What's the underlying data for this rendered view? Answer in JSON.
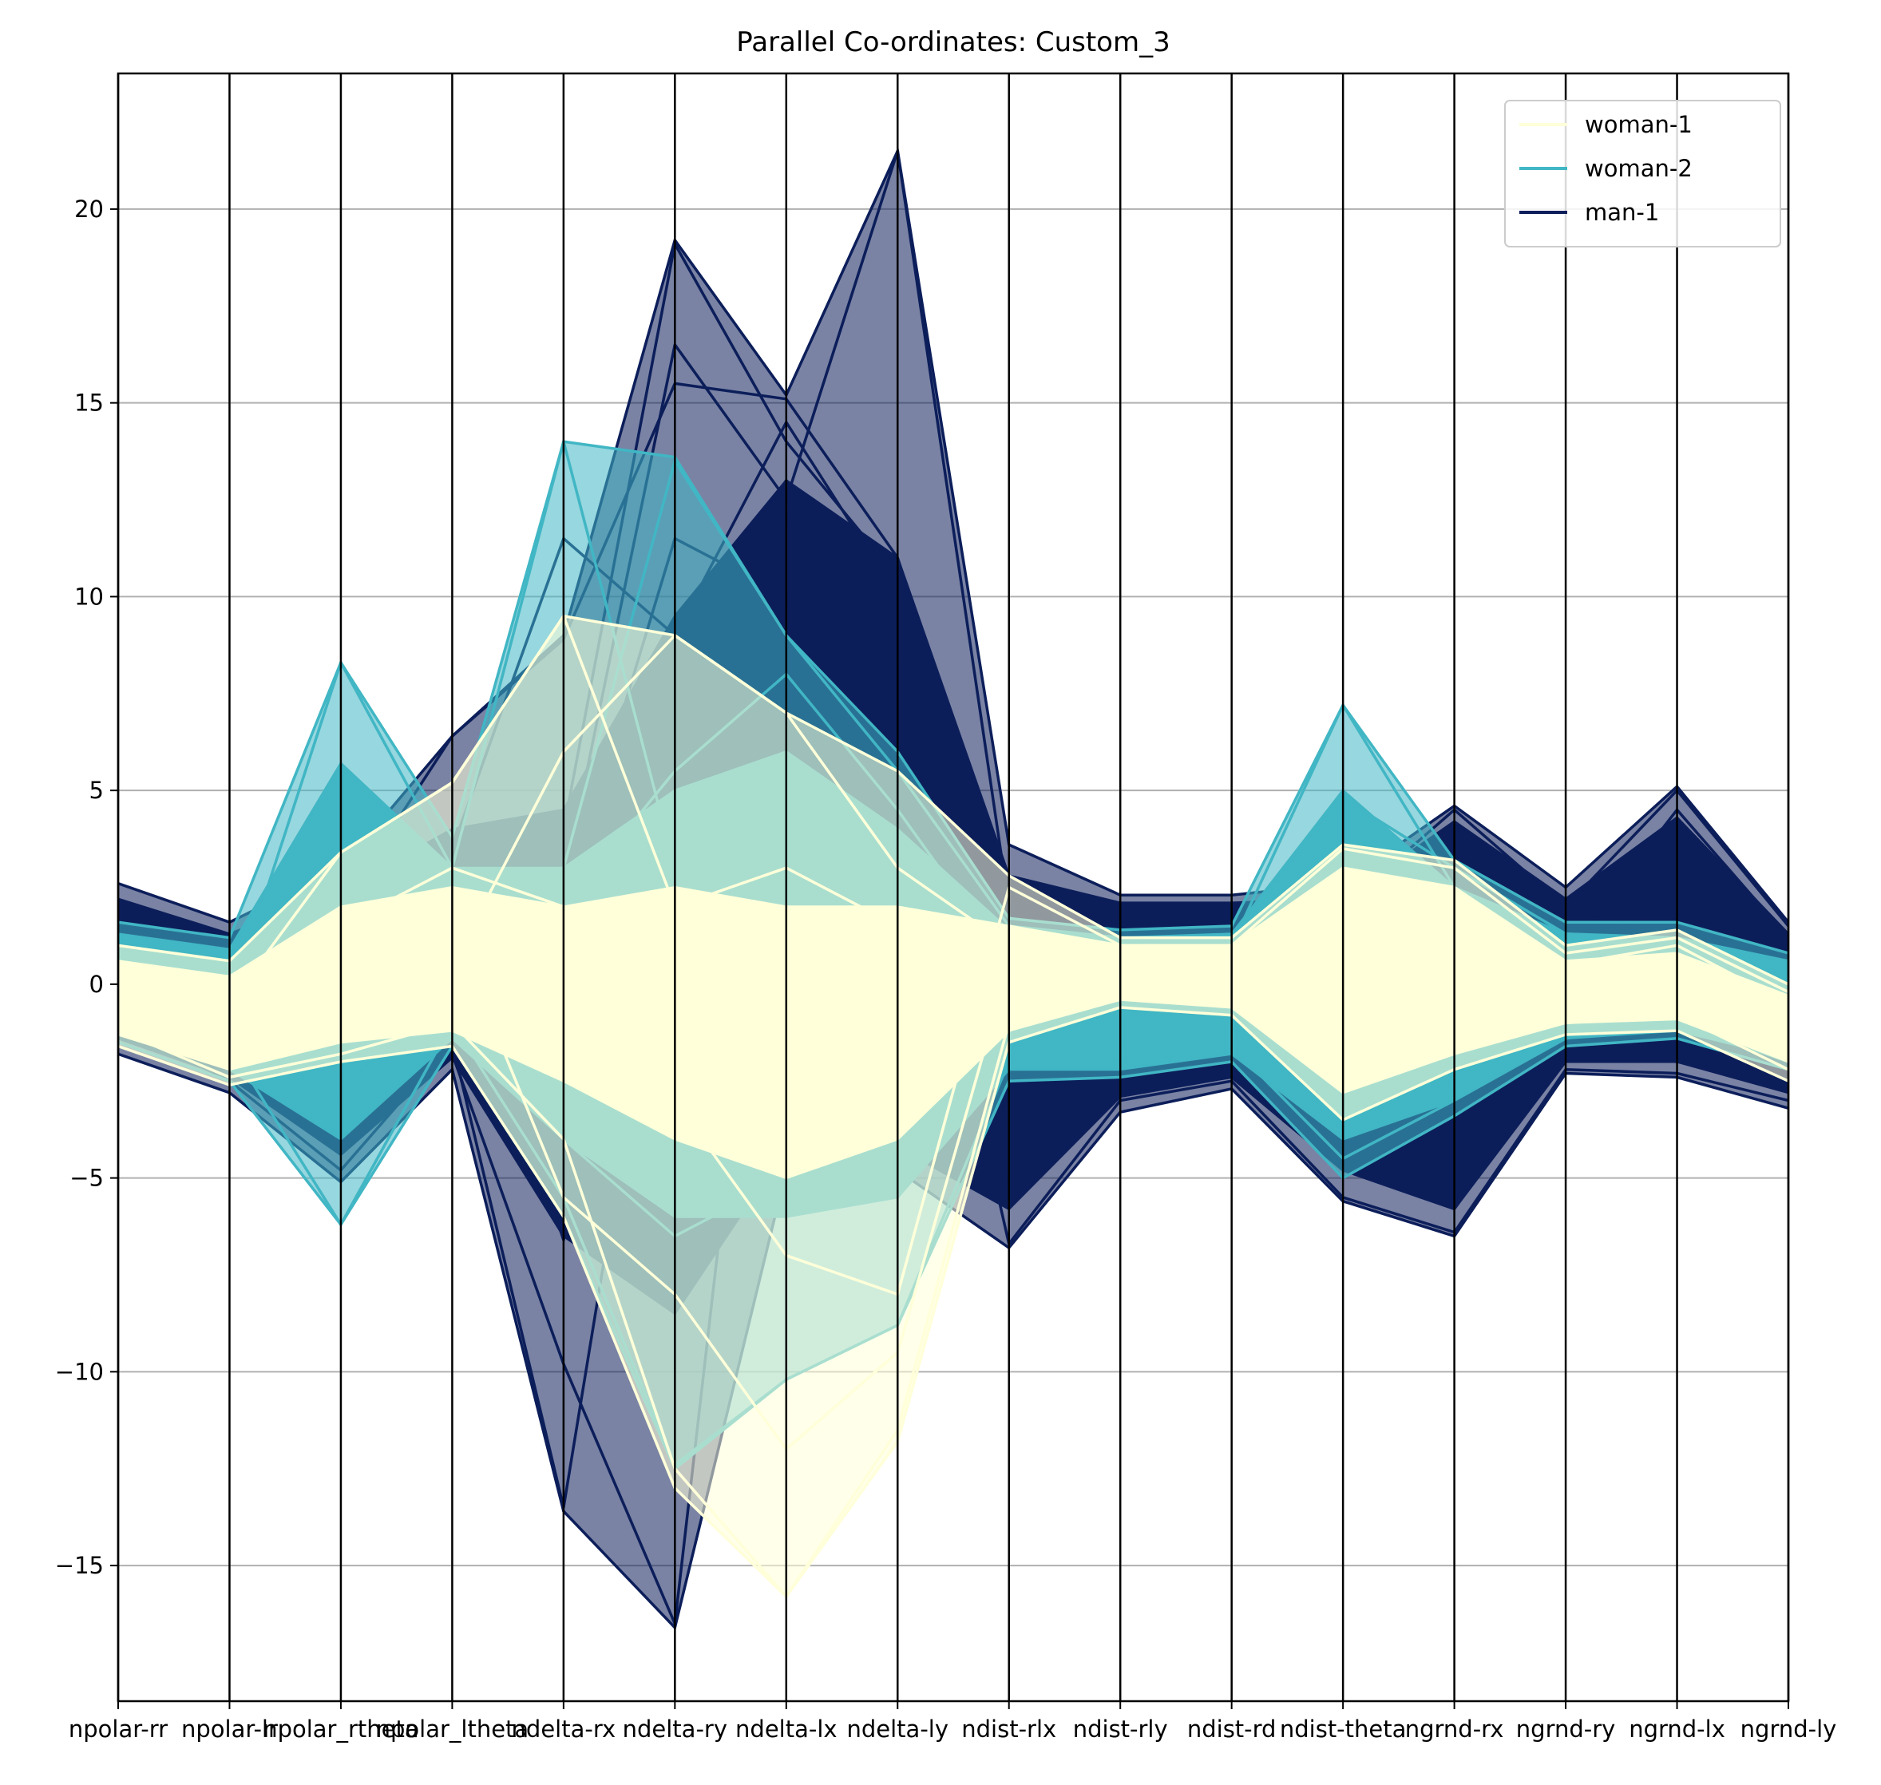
{
  "chart_data": {
    "type": "parallel_coordinates",
    "title": "Parallel Co-ordinates: Custom_3",
    "xlabel": "",
    "ylabel": "",
    "ylim": [
      -18.5,
      23.5
    ],
    "yticks": [
      -15,
      -10,
      -5,
      0,
      5,
      10,
      15,
      20
    ],
    "ytick_labels": [
      "−15",
      "−10",
      "−5",
      "0",
      "5",
      "10",
      "15",
      "20"
    ],
    "categories": [
      "npolar-rr",
      "npolar-lr",
      "npolar_rtheta",
      "npolar_ltheta",
      "ndelta-rx",
      "ndelta-ry",
      "ndelta-lx",
      "ndelta-ly",
      "ndist-rlx",
      "ndist-rly",
      "ndist-rd",
      "ndist-theta",
      "ngrnd-rx",
      "ngrnd-ry",
      "ngrnd-lx",
      "ngrnd-ly"
    ],
    "xtick_labels": [
      "npolar-rr",
      "npolar-lr",
      "npolar_rtheta",
      "npolar_ltheta",
      "ndelta-rx",
      "ndelta-ry",
      "ndelta-lx",
      "ndelta-ly",
      "ndist-rlx",
      "ndist-rly",
      "ndist-rd",
      "ndist-theta",
      "ngrnd-rx",
      "ngrnd-ry",
      "ngrnd-lx",
      "ngrnd-ly"
    ],
    "grid": "horizontal",
    "legend_position": "top-right",
    "series": [
      {
        "name": "man-1",
        "color": "#0c1e5a",
        "upper": [
          2.6,
          1.6,
          3.0,
          6.4,
          9.0,
          19.2,
          15.2,
          21.5,
          3.6,
          2.3,
          2.3,
          2.6,
          4.6,
          2.5,
          5.1,
          1.6
        ],
        "lower": [
          -1.8,
          -2.8,
          -5.1,
          -2.2,
          -13.6,
          -16.6,
          -4.8,
          -4.8,
          -6.8,
          -3.3,
          -2.7,
          -5.6,
          -6.5,
          -2.3,
          -2.4,
          -3.2
        ],
        "band_upper": [
          2.2,
          1.3,
          2.4,
          4.0,
          4.5,
          9.5,
          13.0,
          11.0,
          2.8,
          2.1,
          2.1,
          2.2,
          4.2,
          2.2,
          4.3,
          1.3
        ],
        "band_lower": [
          -1.4,
          -2.4,
          -4.4,
          -1.9,
          -6.5,
          -8.5,
          -4.2,
          -4.2,
          -5.8,
          -2.9,
          -2.4,
          -4.8,
          -5.8,
          -2.0,
          -2.0,
          -2.8
        ],
        "lines": [
          [
            0.5,
            -0.6,
            1.2,
            3.0,
            4.0,
            19.1,
            14.0,
            10.5,
            1.5,
            1.0,
            1.1,
            1.3,
            2.0,
            1.0,
            1.5,
            0.5
          ],
          [
            0.3,
            -0.4,
            0.9,
            2.5,
            2.6,
            16.5,
            12.5,
            21.5,
            2.0,
            1.2,
            1.2,
            1.5,
            2.5,
            1.2,
            2.0,
            0.8
          ],
          [
            0.1,
            -0.9,
            2.0,
            6.4,
            8.9,
            15.5,
            15.1,
            11.0,
            1.8,
            1.1,
            1.1,
            2.0,
            4.5,
            2.0,
            5.0,
            1.5
          ],
          [
            -0.5,
            -1.8,
            -3.5,
            3.5,
            11.5,
            9.0,
            14.5,
            10.0,
            -1.0,
            0.5,
            0.6,
            0.5,
            1.0,
            0.8,
            4.5,
            1.2
          ],
          [
            -1.0,
            -2.5,
            -4.8,
            -1.5,
            -13.5,
            4.0,
            12.0,
            6.0,
            -6.7,
            -3.0,
            -2.5,
            -5.5,
            -6.4,
            -2.2,
            -2.3,
            -3.0
          ],
          [
            -0.8,
            -2.2,
            -4.0,
            -1.8,
            -9.8,
            -16.5,
            8.5,
            4.0,
            -5.5,
            -2.8,
            -2.4,
            -4.8,
            -5.8,
            -1.8,
            -2.0,
            -2.5
          ],
          [
            0.8,
            -0.2,
            1.5,
            2.0,
            -6.6,
            8.5,
            13.0,
            9.0,
            -4.5,
            -2.0,
            -2.0,
            -3.5,
            -4.0,
            -1.5,
            -1.5,
            -2.0
          ],
          [
            1.2,
            0.3,
            0.5,
            1.0,
            2.0,
            11.5,
            10.0,
            2.0,
            -0.5,
            0.2,
            0.2,
            0.0,
            0.5,
            0.3,
            0.5,
            0.0
          ]
        ]
      },
      {
        "name": "woman-2",
        "color": "#41b6c4",
        "upper": [
          1.6,
          1.2,
          8.3,
          3.8,
          14.0,
          13.6,
          9.0,
          6.0,
          1.7,
          1.4,
          1.5,
          7.2,
          3.2,
          1.6,
          1.6,
          0.8
        ],
        "lower": [
          -1.5,
          -2.5,
          -6.2,
          -1.6,
          -6.0,
          -12.5,
          -10.2,
          -8.8,
          -2.5,
          -2.4,
          -2.0,
          -5.0,
          -3.4,
          -1.6,
          -1.4,
          -2.2
        ],
        "band_upper": [
          1.3,
          0.9,
          5.7,
          3.0,
          3.0,
          5.0,
          6.0,
          4.0,
          1.4,
          1.2,
          1.3,
          5.0,
          2.5,
          1.3,
          1.2,
          0.6
        ],
        "band_lower": [
          -1.2,
          -2.2,
          -4.0,
          -1.4,
          -4.0,
          -6.0,
          -6.0,
          -5.5,
          -2.2,
          -2.2,
          -1.8,
          -4.0,
          -3.0,
          -1.4,
          -1.2,
          -1.9
        ],
        "lines": [
          [
            0.4,
            -0.5,
            8.3,
            3.0,
            14.0,
            3.0,
            6.0,
            2.0,
            1.0,
            1.0,
            1.0,
            7.2,
            2.5,
            1.0,
            1.0,
            0.2
          ],
          [
            0.2,
            -0.8,
            5.6,
            2.5,
            3.0,
            13.5,
            9.0,
            5.5,
            1.5,
            1.2,
            1.2,
            4.8,
            3.0,
            1.3,
            1.2,
            0.5
          ],
          [
            -0.6,
            -1.6,
            -6.2,
            -1.0,
            -5.5,
            -12.4,
            -10.2,
            -8.8,
            -2.0,
            -2.0,
            -1.6,
            -4.5,
            -3.0,
            -1.4,
            -1.0,
            -2.0
          ],
          [
            0.0,
            -1.2,
            -3.0,
            1.0,
            2.0,
            5.5,
            8.0,
            4.5,
            0.5,
            0.3,
            0.3,
            3.0,
            1.5,
            0.5,
            0.3,
            -0.5
          ],
          [
            -0.3,
            -1.0,
            1.0,
            2.0,
            -4.0,
            -6.5,
            -5.0,
            -5.5,
            -1.5,
            -1.8,
            -1.5,
            -3.0,
            -2.5,
            -1.0,
            -0.8,
            -1.5
          ]
        ]
      },
      {
        "name": "woman-1",
        "color": "#ffffd9",
        "upper": [
          1.0,
          0.6,
          3.4,
          5.2,
          9.5,
          9.0,
          7.0,
          5.5,
          2.8,
          1.2,
          1.2,
          3.6,
          3.2,
          1.0,
          1.4,
          0.0
        ],
        "lower": [
          -1.6,
          -2.6,
          -2.0,
          -1.6,
          -6.0,
          -13.0,
          -15.8,
          -11.8,
          -1.5,
          -0.6,
          -0.8,
          -3.5,
          -2.2,
          -1.3,
          -1.2,
          -2.5
        ],
        "band_upper": [
          0.6,
          0.2,
          2.0,
          2.5,
          2.0,
          2.5,
          2.0,
          2.0,
          1.5,
          1.0,
          1.0,
          3.0,
          2.5,
          0.6,
          0.8,
          -0.3
        ],
        "band_lower": [
          -1.3,
          -2.2,
          -1.5,
          -1.2,
          -2.5,
          -4.0,
          -5.0,
          -4.0,
          -1.2,
          -0.4,
          -0.6,
          -2.8,
          -1.8,
          -1.0,
          -0.9,
          -2.0
        ],
        "lines": [
          [
            0.5,
            -0.5,
            3.4,
            5.2,
            9.5,
            2.0,
            3.0,
            1.5,
            1.5,
            1.0,
            1.0,
            3.5,
            3.0,
            0.8,
            1.2,
            -0.2
          ],
          [
            -0.8,
            -1.8,
            -1.0,
            0.5,
            6.0,
            9.0,
            7.0,
            3.0,
            1.0,
            0.8,
            0.8,
            1.5,
            1.0,
            -0.5,
            -0.2,
            -1.5
          ],
          [
            -1.2,
            -2.4,
            -1.8,
            -1.0,
            -4.0,
            -12.5,
            -15.8,
            -11.5,
            -1.0,
            -0.3,
            -0.5,
            -2.0,
            -1.5,
            -1.0,
            -0.8,
            -2.2
          ],
          [
            0.0,
            -1.2,
            0.5,
            1.5,
            -5.5,
            -8.0,
            -12.0,
            -9.5,
            0.5,
            0.2,
            0.2,
            0.5,
            0.3,
            -0.3,
            0.0,
            -1.0
          ],
          [
            0.2,
            -1.0,
            1.5,
            3.0,
            2.0,
            -3.0,
            -7.0,
            -8.0,
            2.5,
            1.0,
            1.0,
            3.0,
            2.5,
            0.5,
            1.0,
            -0.5
          ],
          [
            -0.5,
            -1.5,
            0.0,
            0.0,
            0.5,
            1.0,
            0.0,
            0.5,
            0.0,
            0.2,
            0.3,
            -1.0,
            -0.5,
            -0.5,
            -0.3,
            -1.2
          ]
        ]
      }
    ],
    "legend": [
      "woman-1",
      "woman-2",
      "man-1"
    ]
  }
}
